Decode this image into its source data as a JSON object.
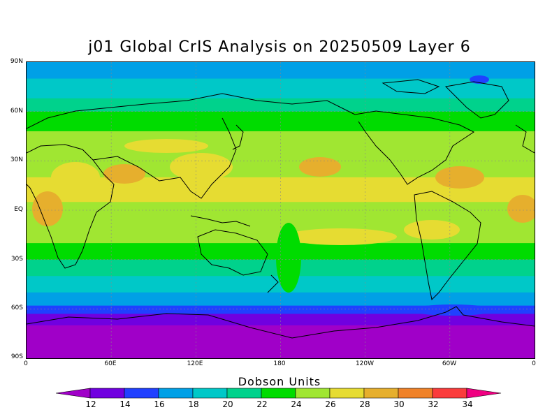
{
  "title": "j01 Global CrIS Analysis on 20250509 Layer 6",
  "lat_labels": [
    "90N",
    "60N",
    "30N",
    "EQ",
    "30S",
    "60S",
    "90S"
  ],
  "lon_labels": [
    "0",
    "60E",
    "120E",
    "180",
    "120W",
    "60W",
    "0"
  ],
  "colorbar": {
    "title": "Dobson Units",
    "labels": [
      "12",
      "14",
      "16",
      "18",
      "20",
      "22",
      "24",
      "26",
      "28",
      "30",
      "32",
      "34"
    ],
    "colors": [
      "#a000c8",
      "#7000e0",
      "#2040ff",
      "#00a0e6",
      "#00c8c8",
      "#00d28c",
      "#00dc00",
      "#a0e632",
      "#e6dc32",
      "#e6af2d",
      "#f08228",
      "#fa3c3c",
      "#f00082"
    ]
  },
  "bands": [
    {
      "from_lat": 90,
      "to_lat": 80,
      "color": "#00a0e6"
    },
    {
      "from_lat": 80,
      "to_lat": 68,
      "color": "#00c8c8"
    },
    {
      "from_lat": 68,
      "to_lat": 60,
      "color": "#00d28c"
    },
    {
      "from_lat": 60,
      "to_lat": 48,
      "color": "#00dc00"
    },
    {
      "from_lat": 48,
      "to_lat": 20,
      "color": "#a0e632"
    },
    {
      "from_lat": 20,
      "to_lat": 5,
      "color": "#e6dc32"
    },
    {
      "from_lat": 5,
      "to_lat": -20,
      "color": "#a0e632"
    },
    {
      "from_lat": -20,
      "to_lat": -30,
      "color": "#00dc00"
    },
    {
      "from_lat": -30,
      "to_lat": -40,
      "color": "#00d28c"
    },
    {
      "from_lat": -40,
      "to_lat": -50,
      "color": "#00c8c8"
    },
    {
      "from_lat": -50,
      "to_lat": -58,
      "color": "#00a0e6"
    },
    {
      "from_lat": -58,
      "to_lat": -63,
      "color": "#2040ff"
    },
    {
      "from_lat": -63,
      "to_lat": -70,
      "color": "#7000e0"
    },
    {
      "from_lat": -70,
      "to_lat": -90,
      "color": "#a000c8"
    }
  ]
}
